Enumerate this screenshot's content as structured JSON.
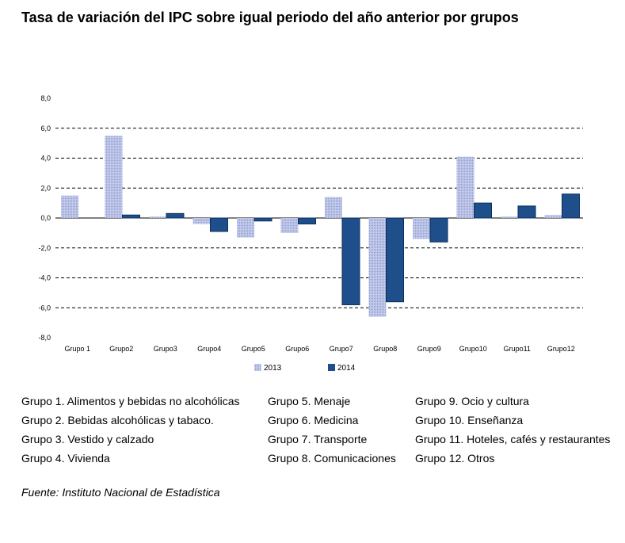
{
  "title": "Tasa de variación del IPC sobre igual periodo del año anterior por grupos",
  "chart_data": {
    "type": "bar",
    "categories": [
      "Grupo 1",
      "Grupo2",
      "Grupo3",
      "Grupo4",
      "Grupo5",
      "Grupo6",
      "Grupo7",
      "Grupo8",
      "Grupo9",
      "Grupo10",
      "Grupo11",
      "Grupo12"
    ],
    "series": [
      {
        "name": "2013",
        "values": [
          1.5,
          5.5,
          0.1,
          -0.4,
          -1.3,
          -1.0,
          1.4,
          -6.6,
          -1.4,
          4.1,
          0.1,
          0.2
        ],
        "color": "#a9b4dc",
        "pattern": "dotted"
      },
      {
        "name": "2014",
        "values": [
          0.0,
          0.2,
          0.3,
          -0.9,
          -0.2,
          -0.4,
          -5.8,
          -5.6,
          -1.6,
          1.0,
          0.8,
          1.6
        ],
        "color": "#1f4f8a"
      }
    ],
    "ylim": [
      -8,
      8
    ],
    "yticks": [
      "8,0",
      "6,0",
      "4,0",
      "2,0",
      "0,0",
      "-2,0",
      "-4,0",
      "-6,0",
      "-8,0"
    ],
    "grid": "dashed horizontal",
    "legend_position": "bottom"
  },
  "groups": {
    "col1": [
      "Grupo 1. Alimentos y bebidas no alcohólicas",
      "Grupo 2. Bebidas alcohólicas y  tabaco.",
      "Grupo 3. Vestido y calzado",
      "Grupo 4. Vivienda"
    ],
    "col2": [
      "Grupo 5. Menaje",
      "Grupo 6. Medicina",
      "Grupo 7. Transporte",
      "Grupo 8. Comunicaciones"
    ],
    "col3": [
      "Grupo 9. Ocio y cultura",
      "Grupo 10. Enseñanza",
      "Grupo 11. Hoteles, cafés y restaurantes",
      "Grupo 12. Otros"
    ]
  },
  "source": "Fuente: Instituto Nacional de Estadística"
}
